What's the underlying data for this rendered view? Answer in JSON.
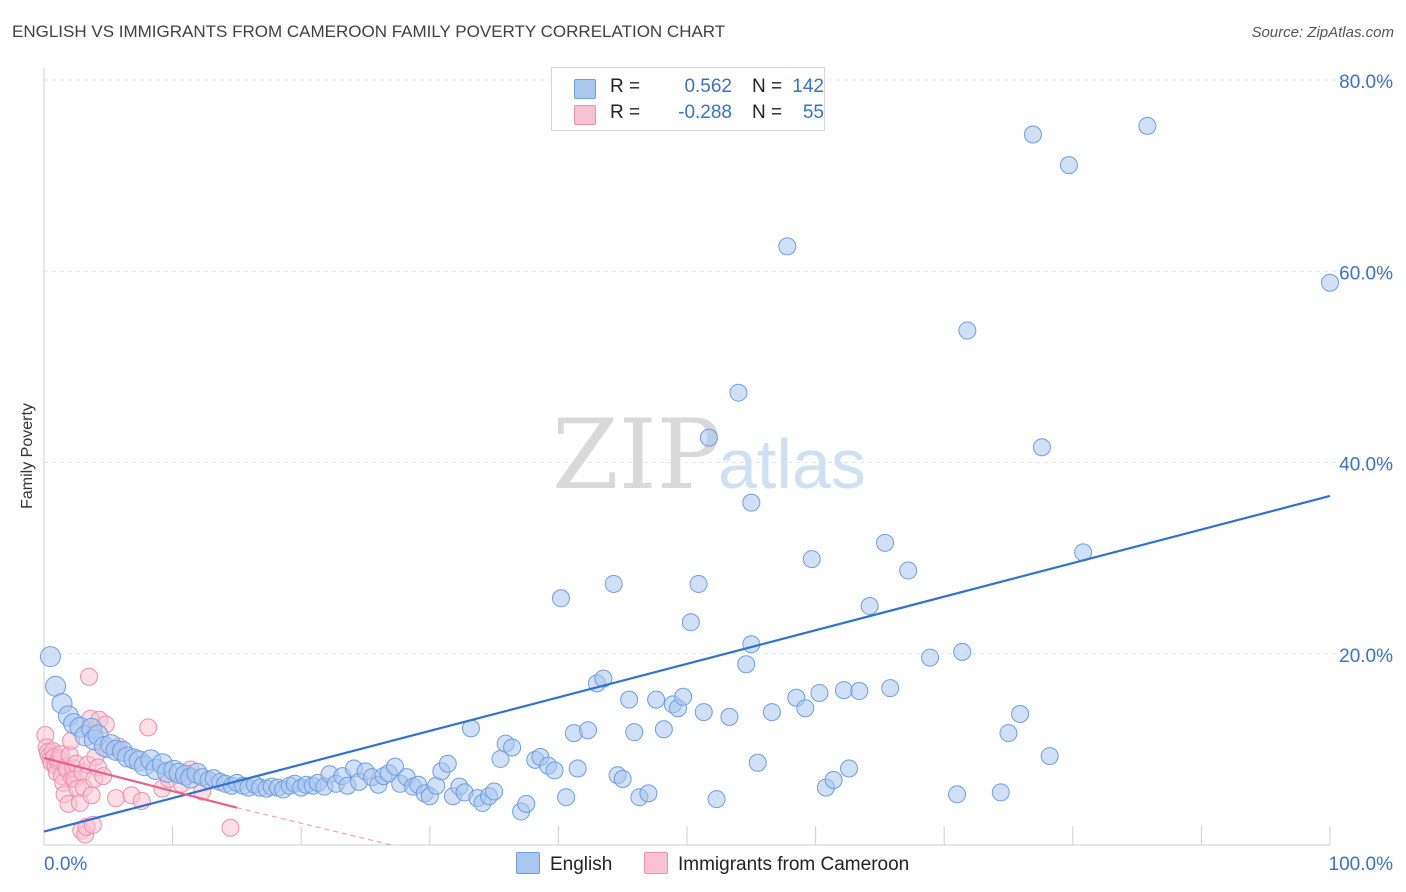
{
  "title": "ENGLISH VS IMMIGRANTS FROM CAMEROON FAMILY POVERTY CORRELATION CHART",
  "source": "Source: ZipAtlas.com",
  "watermark": {
    "zip": "ZIP",
    "atlas": "atlas"
  },
  "legend": {
    "r_label": "R =",
    "n_label": "N =",
    "rows": [
      {
        "r": "0.562",
        "n": "142"
      },
      {
        "r": "-0.288",
        "n": "55"
      }
    ]
  },
  "colors": {
    "english_fill": "#a9c7ef",
    "english_stroke": "#6d9ee0",
    "english_line": "#2f72cf",
    "cameroon_fill": "#f7c2d2",
    "cameroon_stroke": "#ee8fae",
    "cameroon_line": "#e9608f",
    "grid": "#e4e4e4",
    "tick_label": "#3a72c8"
  },
  "chart_data": {
    "type": "scatter",
    "title": "ENGLISH VS IMMIGRANTS FROM CAMEROON FAMILY POVERTY CORRELATION CHART",
    "xlabel": "",
    "ylabel": "Family Poverty",
    "xlim": [
      0,
      100
    ],
    "ylim": [
      0,
      80
    ],
    "x_tick_labels": [
      "0.0%",
      "100.0%"
    ],
    "y_tick_labels": [
      "20.0%",
      "40.0%",
      "60.0%",
      "80.0%"
    ],
    "y_ticks": [
      20,
      40,
      60,
      80
    ],
    "grid": true,
    "legend_position": "top-center",
    "series": [
      {
        "name": "English",
        "r": 0.562,
        "n": 142,
        "trend": {
          "x0": 0,
          "y0": 1.4,
          "x1": 100,
          "y1": 36.5
        },
        "points": [
          [
            0.5,
            19.7
          ],
          [
            0.9,
            16.6
          ],
          [
            1.4,
            14.8
          ],
          [
            1.9,
            13.5
          ],
          [
            2.3,
            12.7
          ],
          [
            2.8,
            12.3
          ],
          [
            3.2,
            11.4
          ],
          [
            3.7,
            12.2
          ],
          [
            3.9,
            11.0
          ],
          [
            4.2,
            11.5
          ],
          [
            4.7,
            10.3
          ],
          [
            5.2,
            10.5
          ],
          [
            5.6,
            9.9
          ],
          [
            6.1,
            9.8
          ],
          [
            6.5,
            9.2
          ],
          [
            7.0,
            9.0
          ],
          [
            7.4,
            8.8
          ],
          [
            7.8,
            8.3
          ],
          [
            8.3,
            8.9
          ],
          [
            8.7,
            7.9
          ],
          [
            9.2,
            8.5
          ],
          [
            9.6,
            7.6
          ],
          [
            10.1,
            7.8
          ],
          [
            10.5,
            7.5
          ],
          [
            11.0,
            7.3
          ],
          [
            11.4,
            7.0
          ],
          [
            11.9,
            7.5
          ],
          [
            12.3,
            7.1
          ],
          [
            12.8,
            6.8
          ],
          [
            13.2,
            7.0
          ],
          [
            13.7,
            6.6
          ],
          [
            14.1,
            6.4
          ],
          [
            14.6,
            6.2
          ],
          [
            15.0,
            6.5
          ],
          [
            15.5,
            6.2
          ],
          [
            15.9,
            6.0
          ],
          [
            16.4,
            6.3
          ],
          [
            16.8,
            6.0
          ],
          [
            17.3,
            5.9
          ],
          [
            17.7,
            6.1
          ],
          [
            18.2,
            6.0
          ],
          [
            18.6,
            5.8
          ],
          [
            19.1,
            6.2
          ],
          [
            19.5,
            6.4
          ],
          [
            20.0,
            6.0
          ],
          [
            20.4,
            6.3
          ],
          [
            20.9,
            6.2
          ],
          [
            21.3,
            6.5
          ],
          [
            21.8,
            6.1
          ],
          [
            22.2,
            7.4
          ],
          [
            22.7,
            6.4
          ],
          [
            23.2,
            7.2
          ],
          [
            23.6,
            6.2
          ],
          [
            24.1,
            8.0
          ],
          [
            24.5,
            6.6
          ],
          [
            25.0,
            7.7
          ],
          [
            25.5,
            7.1
          ],
          [
            26.0,
            6.3
          ],
          [
            26.4,
            7.2
          ],
          [
            26.8,
            7.5
          ],
          [
            27.3,
            8.2
          ],
          [
            27.7,
            6.4
          ],
          [
            28.2,
            7.1
          ],
          [
            28.7,
            6.1
          ],
          [
            29.1,
            6.3
          ],
          [
            29.6,
            5.4
          ],
          [
            30.0,
            5.1
          ],
          [
            30.5,
            6.2
          ],
          [
            30.9,
            7.7
          ],
          [
            31.4,
            8.5
          ],
          [
            31.8,
            5.1
          ],
          [
            32.3,
            6.1
          ],
          [
            32.7,
            5.5
          ],
          [
            33.2,
            12.2
          ],
          [
            33.7,
            4.9
          ],
          [
            34.1,
            4.4
          ],
          [
            34.6,
            5.1
          ],
          [
            35.0,
            5.6
          ],
          [
            35.5,
            9.0
          ],
          [
            35.9,
            10.6
          ],
          [
            36.4,
            10.2
          ],
          [
            37.1,
            3.5
          ],
          [
            37.5,
            4.3
          ],
          [
            38.2,
            8.9
          ],
          [
            38.6,
            9.2
          ],
          [
            39.2,
            8.3
          ],
          [
            39.7,
            7.8
          ],
          [
            40.2,
            25.8
          ],
          [
            40.6,
            5.0
          ],
          [
            41.2,
            11.7
          ],
          [
            41.5,
            8.0
          ],
          [
            42.3,
            12.0
          ],
          [
            43.0,
            16.9
          ],
          [
            43.5,
            17.4
          ],
          [
            44.3,
            27.3
          ],
          [
            44.6,
            7.3
          ],
          [
            45.0,
            6.9
          ],
          [
            45.5,
            15.2
          ],
          [
            45.9,
            11.8
          ],
          [
            46.3,
            5.0
          ],
          [
            47.0,
            5.4
          ],
          [
            47.6,
            15.2
          ],
          [
            48.2,
            12.1
          ],
          [
            48.9,
            14.7
          ],
          [
            49.3,
            14.3
          ],
          [
            49.7,
            15.5
          ],
          [
            50.3,
            23.3
          ],
          [
            50.9,
            27.3
          ],
          [
            51.3,
            13.9
          ],
          [
            51.7,
            42.6
          ],
          [
            52.3,
            4.8
          ],
          [
            53.3,
            13.4
          ],
          [
            54.0,
            47.3
          ],
          [
            55.0,
            35.8
          ],
          [
            55.0,
            21.0
          ],
          [
            54.6,
            18.9
          ],
          [
            55.5,
            8.6
          ],
          [
            56.6,
            13.9
          ],
          [
            57.8,
            62.6
          ],
          [
            58.5,
            15.4
          ],
          [
            59.2,
            14.3
          ],
          [
            59.7,
            29.9
          ],
          [
            60.3,
            15.9
          ],
          [
            60.8,
            6.0
          ],
          [
            61.4,
            6.8
          ],
          [
            62.2,
            16.2
          ],
          [
            62.6,
            8.0
          ],
          [
            63.4,
            16.1
          ],
          [
            64.2,
            25.0
          ],
          [
            65.4,
            31.6
          ],
          [
            65.8,
            16.4
          ],
          [
            67.2,
            28.7
          ],
          [
            68.9,
            19.6
          ],
          [
            71.0,
            5.3
          ],
          [
            71.4,
            20.2
          ],
          [
            71.8,
            53.8
          ],
          [
            74.4,
            5.5
          ],
          [
            75.0,
            11.7
          ],
          [
            75.9,
            13.7
          ],
          [
            76.9,
            74.3
          ],
          [
            77.6,
            41.6
          ],
          [
            78.2,
            9.3
          ],
          [
            79.7,
            71.1
          ],
          [
            80.8,
            30.6
          ],
          [
            85.8,
            75.2
          ],
          [
            100.0,
            58.8
          ]
        ]
      },
      {
        "name": "Immigrants from Cameroon",
        "r": -0.288,
        "n": 55,
        "trend": {
          "x0": 0,
          "y0": 9.1,
          "x1": 15,
          "y1": 3.9
        },
        "trend_extension": {
          "x0": 15,
          "y0": 3.9,
          "x1": 27,
          "y1": 0
        },
        "points": [
          [
            0.1,
            11.5
          ],
          [
            0.2,
            10.2
          ],
          [
            0.3,
            9.7
          ],
          [
            0.4,
            9.3
          ],
          [
            0.5,
            8.9
          ],
          [
            0.6,
            8.6
          ],
          [
            0.7,
            9.8
          ],
          [
            0.8,
            9.2
          ],
          [
            0.9,
            8.3
          ],
          [
            1.0,
            7.6
          ],
          [
            1.1,
            8.8
          ],
          [
            1.2,
            9.0
          ],
          [
            1.3,
            9.5
          ],
          [
            1.4,
            7.2
          ],
          [
            1.5,
            6.5
          ],
          [
            1.6,
            5.3
          ],
          [
            1.7,
            8.2
          ],
          [
            1.8,
            7.9
          ],
          [
            1.9,
            4.3
          ],
          [
            2.0,
            9.4
          ],
          [
            2.1,
            10.9
          ],
          [
            2.2,
            7.0
          ],
          [
            2.3,
            8.0
          ],
          [
            2.4,
            6.9
          ],
          [
            2.5,
            8.5
          ],
          [
            2.6,
            5.9
          ],
          [
            2.8,
            4.4
          ],
          [
            2.9,
            1.5
          ],
          [
            3.0,
            7.6
          ],
          [
            3.1,
            6.0
          ],
          [
            3.2,
            1.1
          ],
          [
            3.3,
            1.9
          ],
          [
            3.4,
            8.4
          ],
          [
            3.5,
            17.6
          ],
          [
            3.6,
            13.2
          ],
          [
            3.7,
            5.2
          ],
          [
            3.8,
            2.1
          ],
          [
            3.9,
            6.9
          ],
          [
            4.0,
            9.2
          ],
          [
            4.2,
            8.1
          ],
          [
            4.3,
            13.1
          ],
          [
            4.6,
            7.2
          ],
          [
            4.8,
            12.6
          ],
          [
            4.9,
            10.0
          ],
          [
            5.6,
            4.9
          ],
          [
            5.8,
            10.3
          ],
          [
            6.8,
            5.2
          ],
          [
            7.6,
            4.6
          ],
          [
            8.1,
            12.3
          ],
          [
            9.2,
            5.9
          ],
          [
            9.7,
            6.9
          ],
          [
            10.7,
            6.4
          ],
          [
            11.4,
            7.9
          ],
          [
            12.3,
            5.6
          ],
          [
            14.5,
            1.8
          ]
        ]
      }
    ]
  }
}
